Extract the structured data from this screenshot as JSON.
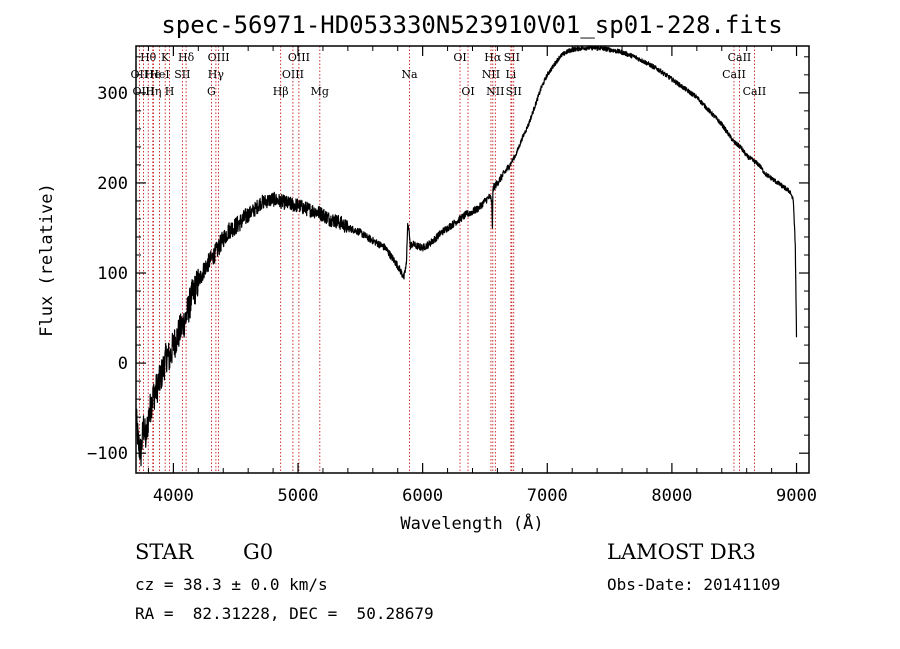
{
  "chart_data": {
    "type": "line",
    "title": "spec-56971-HD053330N523910V01_sp01-228.fits",
    "xlabel": "Wavelength (Å)",
    "ylabel": "Flux (relative)",
    "xlim": [
      3700,
      9100
    ],
    "ylim": [
      -122,
      352
    ],
    "x_ticks": [
      4000,
      5000,
      6000,
      7000,
      8000,
      9000
    ],
    "y_ticks": [
      -100,
      0,
      100,
      200,
      300
    ],
    "grid": false,
    "series": [
      {
        "name": "Flux",
        "x": [
          3700,
          3720,
          3740,
          3760,
          3780,
          3800,
          3830,
          3860,
          3890,
          3920,
          3950,
          3970,
          4000,
          4050,
          4100,
          4150,
          4200,
          4250,
          4300,
          4350,
          4400,
          4450,
          4500,
          4550,
          4600,
          4650,
          4700,
          4750,
          4800,
          4850,
          4900,
          4950,
          5000,
          5050,
          5100,
          5150,
          5200,
          5250,
          5300,
          5350,
          5400,
          5450,
          5500,
          5550,
          5600,
          5650,
          5700,
          5750,
          5800,
          5850,
          5870,
          5880,
          5890,
          5895,
          5900,
          5920,
          5950,
          6000,
          6050,
          6100,
          6150,
          6200,
          6250,
          6300,
          6350,
          6400,
          6450,
          6500,
          6540,
          6555,
          6560,
          6563,
          6570,
          6600,
          6650,
          6700,
          6750,
          6800,
          6850,
          6900,
          6950,
          7000,
          7050,
          7100,
          7150,
          7200,
          7300,
          7400,
          7500,
          7600,
          7700,
          7800,
          7900,
          8000,
          8100,
          8200,
          8300,
          8400,
          8500,
          8550,
          8600,
          8650,
          8700,
          8750,
          8800,
          8850,
          8900,
          8950,
          8975,
          8990,
          9000
        ],
        "y": [
          -60,
          -90,
          -100,
          -70,
          -85,
          -60,
          -40,
          -30,
          -20,
          -5,
          10,
          5,
          20,
          35,
          50,
          75,
          90,
          105,
          115,
          125,
          138,
          148,
          152,
          158,
          165,
          170,
          178,
          180,
          182,
          180,
          178,
          176,
          175,
          172,
          170,
          168,
          165,
          160,
          158,
          155,
          150,
          148,
          145,
          140,
          136,
          132,
          128,
          118,
          108,
          95,
          110,
          155,
          148,
          140,
          130,
          132,
          130,
          128,
          132,
          138,
          145,
          150,
          155,
          160,
          165,
          168,
          172,
          180,
          185,
          180,
          150,
          190,
          195,
          200,
          210,
          220,
          232,
          250,
          265,
          285,
          305,
          320,
          330,
          340,
          345,
          348,
          350,
          350,
          348,
          345,
          340,
          333,
          325,
          315,
          305,
          295,
          280,
          265,
          245,
          240,
          230,
          225,
          220,
          210,
          205,
          200,
          195,
          190,
          180,
          130,
          30
        ]
      }
    ],
    "line_markers": [
      {
        "label": "Hθ",
        "x": 3798,
        "row": 0
      },
      {
        "label": "OII",
        "x": 3727,
        "row": 1
      },
      {
        "label": "OIII",
        "x": 3760,
        "row": 2
      },
      {
        "label": "He",
        "x": 3835,
        "row": 1
      },
      {
        "label": "Hη",
        "x": 3840,
        "row": 2
      },
      {
        "label": "K",
        "x": 3934,
        "row": 0
      },
      {
        "label": "H",
        "x": 3969,
        "row": 2
      },
      {
        "label": "HeI",
        "x": 3889,
        "row": 1
      },
      {
        "label": "SII",
        "x": 4072,
        "row": 1
      },
      {
        "label": "Hδ",
        "x": 4102,
        "row": 0
      },
      {
        "label": "OIII",
        "x": 4363,
        "row": 0
      },
      {
        "label": "Hγ",
        "x": 4341,
        "row": 1
      },
      {
        "label": "G",
        "x": 4305,
        "row": 2
      },
      {
        "label": "Hβ",
        "x": 4861,
        "row": 2
      },
      {
        "label": "OIII",
        "x": 5007,
        "row": 0
      },
      {
        "label": "OIII",
        "x": 4959,
        "row": 1
      },
      {
        "label": "Mg",
        "x": 5175,
        "row": 2
      },
      {
        "label": "Na",
        "x": 5894,
        "row": 1
      },
      {
        "label": "OI",
        "x": 6300,
        "row": 0
      },
      {
        "label": "OI",
        "x": 6364,
        "row": 2
      },
      {
        "label": "Hα",
        "x": 6563,
        "row": 0
      },
      {
        "label": "NII",
        "x": 6548,
        "row": 1
      },
      {
        "label": "NII",
        "x": 6583,
        "row": 2
      },
      {
        "label": "SII",
        "x": 6716,
        "row": 0
      },
      {
        "label": "Li",
        "x": 6708,
        "row": 1
      },
      {
        "label": "SII",
        "x": 6731,
        "row": 2
      },
      {
        "label": "CaII",
        "x": 8542,
        "row": 0
      },
      {
        "label": "CaII",
        "x": 8498,
        "row": 1
      },
      {
        "label": "CaII",
        "x": 8662,
        "row": 2
      }
    ]
  },
  "info": {
    "class_label": "STAR",
    "subclass": "G0",
    "survey": "LAMOST DR3",
    "cz": "cz = 38.3 ± 0.0 km/s",
    "obs_date": "Obs-Date: 20141109",
    "coords": "RA =  82.31228, DEC =  50.28679"
  }
}
